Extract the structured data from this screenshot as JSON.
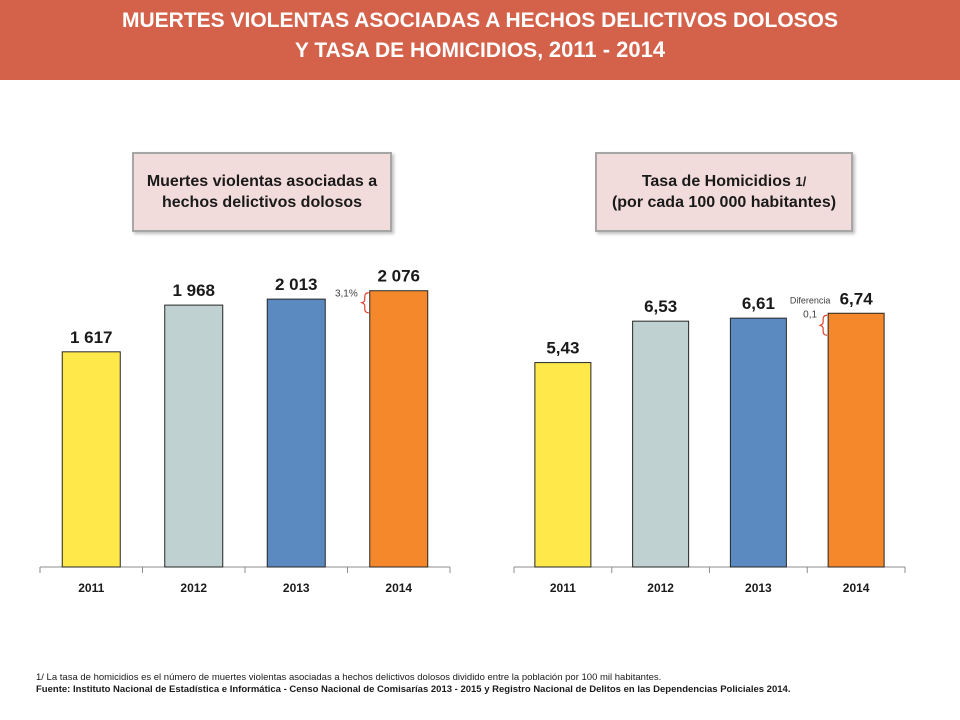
{
  "header": {
    "title_line1": "MUERTES VIOLENTAS ASOCIADAS A HECHOS DELICTIVOS DOLOSOS",
    "title_line2_text": "Y TASA DE HOMICIDIOS, ",
    "title_line2_years": "2011 - 2014"
  },
  "colors": {
    "header_bg": "#d4614a",
    "box_bg": "#f2dcdb",
    "bar_2011": "#ffe84a",
    "bar_2012": "#bfd1d0",
    "bar_2013": "#5b8ac1",
    "bar_2014": "#f5882a",
    "bracket": "#e2402a"
  },
  "chart_data": [
    {
      "type": "bar",
      "title": "Muertes violentas asociadas a hechos delictivos dolosos",
      "categories": [
        "2011",
        "2012",
        "2013",
        "2014"
      ],
      "values": [
        1617,
        1968,
        2013,
        2076
      ],
      "labels": [
        "1 617",
        "1 968",
        "2 013",
        "2 076"
      ],
      "ylim": [
        0,
        2600
      ],
      "grid": false,
      "annotation": {
        "text": "3,1%",
        "between": [
          "2013",
          "2014"
        ]
      }
    },
    {
      "type": "bar",
      "title": "Tasa de Homicidios",
      "title_superscript": "1/",
      "title_suffix": "(por cada 100 000 habitantes)",
      "categories": [
        "2011",
        "2012",
        "2013",
        "2014"
      ],
      "values": [
        5.43,
        6.53,
        6.61,
        6.74
      ],
      "labels": [
        "5,43",
        "6,53",
        "6,61",
        "6,74"
      ],
      "ylim": [
        0,
        8.5
      ],
      "grid": false,
      "annotation": {
        "text_line1": "Diferencia",
        "text_line2": "0,1",
        "between": [
          "2013",
          "2014"
        ]
      }
    }
  ],
  "footnote": "1/ La tasa de homicidios es el número de muertes violentas asociadas a hechos delictivos dolosos dividido entre la población por 100 mil habitantes.",
  "source": "Fuente: Instituto Nacional de Estadística e Informática - Censo Nacional de Comisarías 2013 - 2015 y Registro Nacional de Delitos en las Dependencias Policiales 2014."
}
